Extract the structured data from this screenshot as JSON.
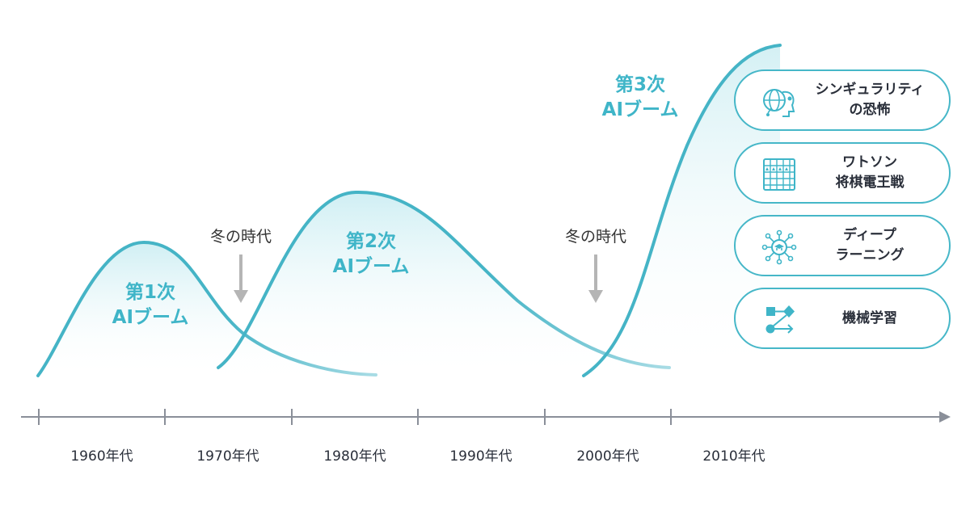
{
  "diagram": {
    "booms": [
      {
        "line1": "第1次",
        "line2": "AIブーム"
      },
      {
        "line1": "第2次",
        "line2": "AIブーム"
      },
      {
        "line1": "第3次",
        "line2": "AIブーム"
      }
    ],
    "winters": [
      {
        "label": "冬の時代"
      },
      {
        "label": "冬の時代"
      }
    ],
    "decades": [
      "1960年代",
      "1970年代",
      "1980年代",
      "1990年代",
      "2000年代",
      "2010年代"
    ],
    "topics": [
      {
        "line1": "シンギュラリティ",
        "line2": "の恐怖",
        "icon": "brain-circuit-icon"
      },
      {
        "line1": "ワトソン",
        "line2": "将棋電王戦",
        "icon": "shogi-board-icon"
      },
      {
        "line1": "ディープ",
        "line2": "ラーニング",
        "icon": "neural-network-icon"
      },
      {
        "line1": "機械学習",
        "line2": "",
        "icon": "flow-shapes-icon"
      }
    ],
    "colors": {
      "accent": "#3fb5c8",
      "curve": "#45b4c6",
      "curve_fade": "#a9dce5",
      "axis": "#8a8f99",
      "winter_arrow": "#b5b5b5",
      "text": "#2a2f3a"
    }
  }
}
